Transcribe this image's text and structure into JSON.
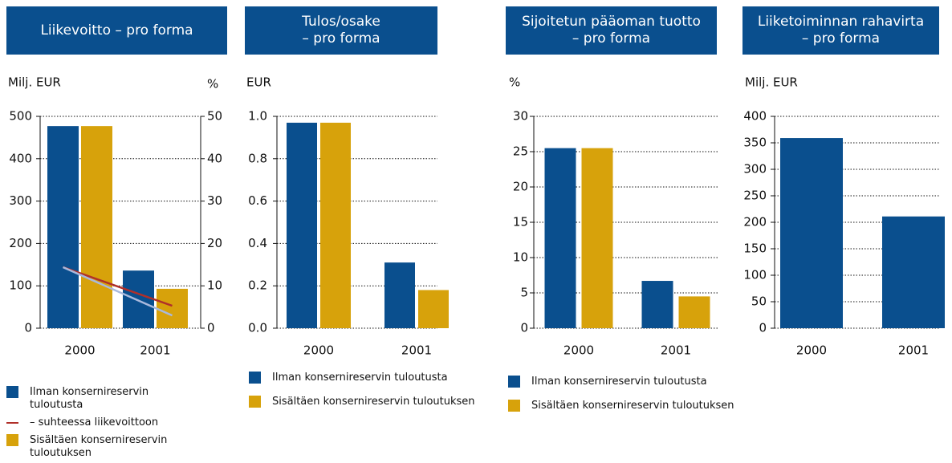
{
  "chart_data": [
    {
      "type": "bar",
      "title": "Liikevoitto – pro forma",
      "ylabel": "Milj. EUR",
      "y2label": "%",
      "categories": [
        "2000",
        "2001"
      ],
      "series": [
        {
          "name": "Ilman konsernireservin tuloutusta",
          "type": "bar",
          "color": "#0a4f8e",
          "values": [
            477,
            136
          ]
        },
        {
          "name": "– suhteessa liikevoittoon",
          "type": "line",
          "axis": "y2",
          "color": "#b0302a",
          "values": [
            14.4,
            5.3
          ]
        },
        {
          "name": "Sisältäen konsernireservin tuloutuksen",
          "type": "bar",
          "color": "#d7a20b",
          "values": [
            477,
            93
          ]
        },
        {
          "name": "– suhteessa liikevoittoon",
          "type": "line",
          "axis": "y2",
          "color": "#a9b9dd",
          "values": [
            14.4,
            3.0
          ]
        }
      ],
      "ylim": [
        0,
        500
      ],
      "yticks": [
        0,
        100,
        200,
        300,
        400,
        500
      ],
      "y2lim": [
        0,
        50
      ],
      "y2ticks": [
        0,
        10,
        20,
        30,
        40,
        50
      ],
      "grid": true
    },
    {
      "type": "bar",
      "title": "Tulos/osake\n– pro forma",
      "ylabel": "EUR",
      "categories": [
        "2000",
        "2001"
      ],
      "series": [
        {
          "name": "Ilman konsernireservin tuloutusta",
          "type": "bar",
          "color": "#0a4f8e",
          "values": [
            0.97,
            0.31
          ]
        },
        {
          "name": "Sisältäen konsernireservin tuloutuksen",
          "type": "bar",
          "color": "#d7a20b",
          "values": [
            0.97,
            0.18
          ]
        }
      ],
      "ylim": [
        0,
        1.0
      ],
      "yticks": [
        {
          "value": 0,
          "label": "0.0"
        },
        0.2,
        0.4,
        0.6,
        0.8,
        {
          "value": 1,
          "label": "1.0"
        }
      ],
      "grid": true
    },
    {
      "type": "bar",
      "title": "Sijoitetun pääoman tuotto\n– pro forma",
      "ylabel": "%",
      "categories": [
        "2000",
        "2001"
      ],
      "series": [
        {
          "name": "Ilman konsernireservin tuloutusta",
          "type": "bar",
          "color": "#0a4f8e",
          "values": [
            25.5,
            6.7
          ]
        },
        {
          "name": "Sisältäen konsernireservin tuloutuksen",
          "type": "bar",
          "color": "#d7a20b",
          "values": [
            25.5,
            4.5
          ]
        }
      ],
      "ylim": [
        0,
        30
      ],
      "yticks": [
        0,
        5,
        10,
        15,
        20,
        25,
        30
      ],
      "grid": true
    },
    {
      "type": "bar",
      "title": "Liiketoiminnan rahavirta\n– pro forma",
      "ylabel": "Milj. EUR",
      "categories": [
        "2000",
        "2001"
      ],
      "values": [
        359,
        211
      ],
      "color": "#0a4f8e",
      "ylim": [
        0,
        400
      ],
      "yticks": [
        0,
        50,
        100,
        150,
        200,
        250,
        300,
        350,
        400
      ],
      "grid": true
    }
  ]
}
